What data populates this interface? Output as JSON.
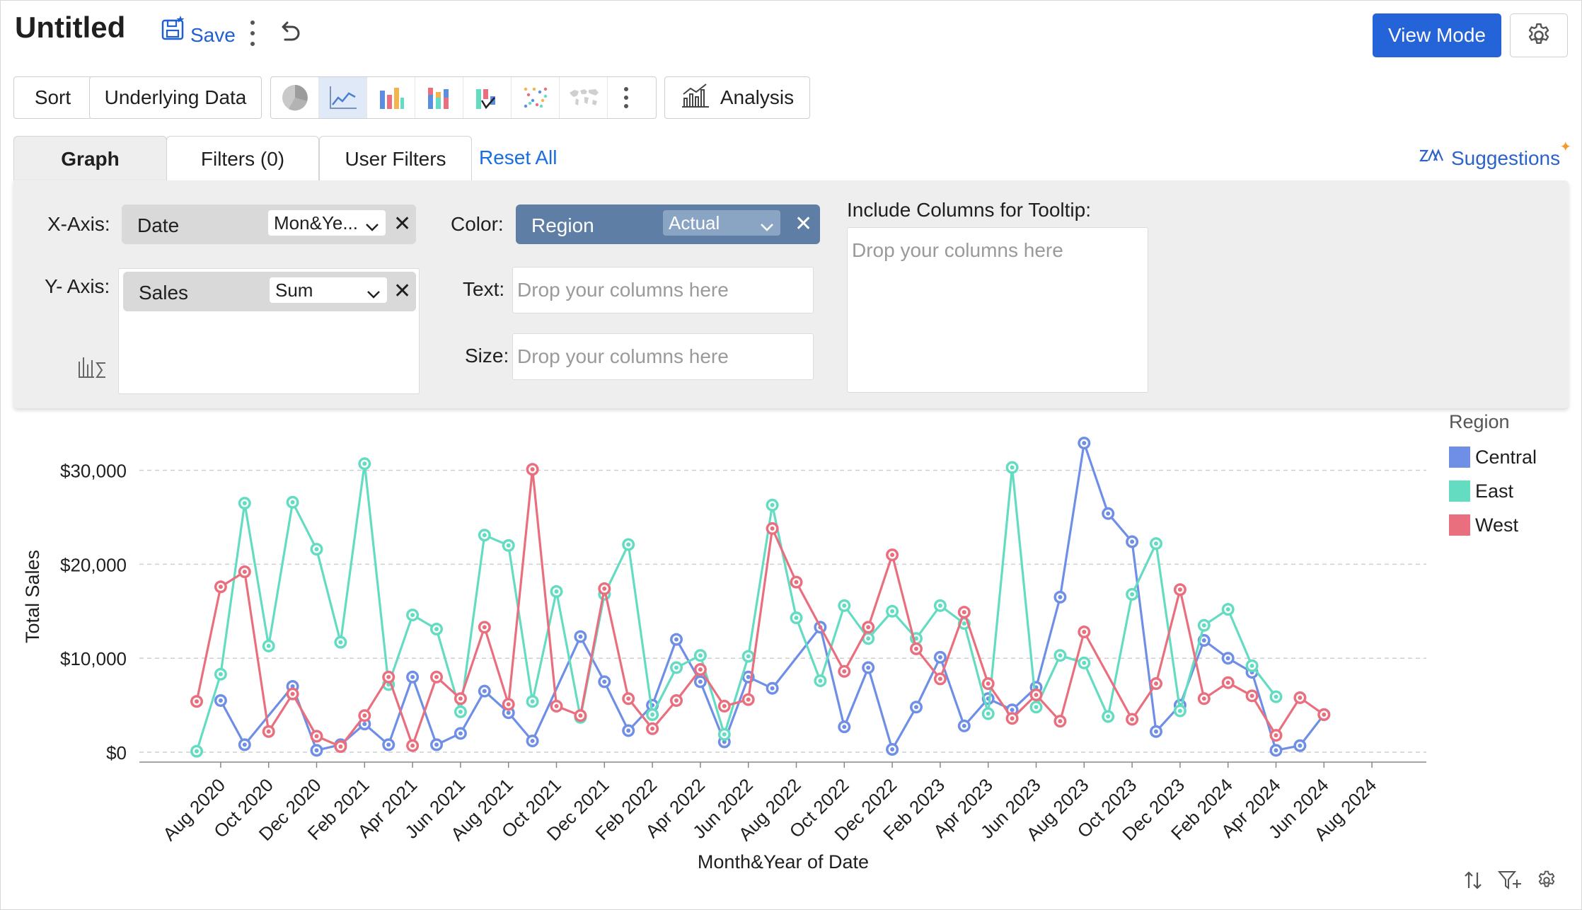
{
  "header": {
    "title": "Untitled",
    "save_label": "Save",
    "view_mode_label": "View Mode"
  },
  "toolbar": {
    "sort_label": "Sort",
    "underlying_data_label": "Underlying Data",
    "chart_types": [
      "pie-chart-icon",
      "line-chart-icon",
      "bar-chart-icon",
      "stacked-bar-chart-icon",
      "waterfall-chart-icon",
      "scatter-chart-icon",
      "map-chart-icon"
    ],
    "active_chart_type": "line-chart-icon",
    "analysis_label": "Analysis"
  },
  "tabs": {
    "graph": "Graph",
    "filters": "Filters  (0)",
    "user_filters": "User Filters",
    "reset_all": "Reset All",
    "suggestions": "Suggestions"
  },
  "config": {
    "x_axis_label": "X-Axis:",
    "x_axis_field": "Date",
    "x_axis_agg": "Mon&Ye...",
    "y_axis_label": "Y- Axis:",
    "y_axis_field": "Sales",
    "y_axis_agg": "Sum",
    "color_label": "Color:",
    "color_field": "Region",
    "color_agg": "Actual",
    "text_label": "Text:",
    "size_label": "Size:",
    "tooltip_label": "Include Columns for Tooltip:",
    "drop_placeholder": "Drop your columns here"
  },
  "colors": {
    "primary": "#2563d9",
    "link": "#1a6fe0",
    "central": "#6f8ee6",
    "east": "#63dcc2",
    "west": "#ea6f7e"
  },
  "chart_data": {
    "type": "line",
    "title": "",
    "xlabel": "Month&Year of Date",
    "ylabel": "Total Sales",
    "ylim": [
      0,
      32000
    ],
    "yticks": [
      "$0",
      "$10,000",
      "$20,000",
      "$30,000"
    ],
    "legend_title": "Region",
    "legend_position": "right",
    "grid": "horizontal dashed",
    "x": [
      "Jul 2020",
      "Aug 2020",
      "Sep 2020",
      "Oct 2020",
      "Nov 2020",
      "Dec 2020",
      "Jan 2021",
      "Feb 2021",
      "Mar 2021",
      "Apr 2021",
      "May 2021",
      "Jun 2021",
      "Jul 2021",
      "Aug 2021",
      "Sep 2021",
      "Oct 2021",
      "Nov 2021",
      "Dec 2021",
      "Jan 2022",
      "Feb 2022",
      "Mar 2022",
      "Apr 2022",
      "May 2022",
      "Jun 2022",
      "Jul 2022",
      "Aug 2022",
      "Sep 2022",
      "Oct 2022",
      "Nov 2022",
      "Dec 2022",
      "Jan 2023",
      "Feb 2023",
      "Mar 2023",
      "Apr 2023",
      "May 2023",
      "Jun 2023",
      "Jul 2023",
      "Aug 2023",
      "Sep 2023",
      "Oct 2023",
      "Nov 2023",
      "Dec 2023",
      "Jan 2024",
      "Feb 2024",
      "Mar 2024",
      "Apr 2024",
      "May 2024",
      "Jun 2024",
      "Jul 2024",
      "Aug 2024",
      "Sep 2024"
    ],
    "tick_labels": [
      "Aug 2020",
      "Oct 2020",
      "Dec 2020",
      "Feb 2021",
      "Apr 2021",
      "Jun 2021",
      "Aug 2021",
      "Oct 2021",
      "Dec 2021",
      "Feb 2022",
      "Apr 2022",
      "Jun 2022",
      "Aug 2022",
      "Oct 2022",
      "Dec 2022",
      "Feb 2023",
      "Apr 2023",
      "Jun 2023",
      "Aug 2023",
      "Oct 2023",
      "Dec 2023",
      "Feb 2024",
      "Apr 2024",
      "Jun 2024",
      "Aug 2024"
    ],
    "series": [
      {
        "name": "Central",
        "points": [
          [
            "Aug 2020",
            5500
          ],
          [
            "Sep 2020",
            800
          ],
          [
            "Nov 2020",
            7000
          ],
          [
            "Dec 2020",
            200
          ],
          [
            "Jan 2021",
            800
          ],
          [
            "Feb 2021",
            3000
          ],
          [
            "Mar 2021",
            800
          ],
          [
            "Apr 2021",
            8000
          ],
          [
            "May 2021",
            800
          ],
          [
            "Jun 2021",
            2000
          ],
          [
            "Jul 2021",
            6500
          ],
          [
            "Aug 2021",
            4200
          ],
          [
            "Sep 2021",
            1200
          ],
          [
            "Nov 2021",
            12300
          ],
          [
            "Dec 2021",
            7500
          ],
          [
            "Jan 2022",
            2300
          ],
          [
            "Feb 2022",
            5000
          ],
          [
            "Mar 2022",
            12000
          ],
          [
            "Apr 2022",
            7500
          ],
          [
            "May 2022",
            1100
          ],
          [
            "Jun 2022",
            8000
          ],
          [
            "Jul 2022",
            6800
          ],
          [
            "Sep 2022",
            13300
          ],
          [
            "Oct 2022",
            2700
          ],
          [
            "Nov 2022",
            9000
          ],
          [
            "Dec 2022",
            300
          ],
          [
            "Jan 2023",
            4800
          ],
          [
            "Feb 2023",
            10100
          ],
          [
            "Mar 2023",
            2800
          ],
          [
            "Apr 2023",
            5700
          ],
          [
            "May 2023",
            4500
          ],
          [
            "Jun 2023",
            6900
          ],
          [
            "Jul 2023",
            16500
          ],
          [
            "Aug 2023",
            32900
          ],
          [
            "Sep 2023",
            25400
          ],
          [
            "Oct 2023",
            22400
          ],
          [
            "Nov 2023",
            2200
          ],
          [
            "Dec 2023",
            5000
          ],
          [
            "Jan 2024",
            11900
          ],
          [
            "Feb 2024",
            10000
          ],
          [
            "Mar 2024",
            8500
          ],
          [
            "Apr 2024",
            200
          ],
          [
            "May 2024",
            700
          ],
          [
            "Jun 2024",
            4000
          ]
        ]
      },
      {
        "name": "East",
        "points": [
          [
            "Jul 2020",
            100
          ],
          [
            "Aug 2020",
            8300
          ],
          [
            "Sep 2020",
            26500
          ],
          [
            "Oct 2020",
            11300
          ],
          [
            "Nov 2020",
            26600
          ],
          [
            "Dec 2020",
            21600
          ],
          [
            "Jan 2021",
            11700
          ],
          [
            "Feb 2021",
            30700
          ],
          [
            "Mar 2021",
            7200
          ],
          [
            "Apr 2021",
            14600
          ],
          [
            "May 2021",
            13100
          ],
          [
            "Jun 2021",
            4300
          ],
          [
            "Jul 2021",
            23100
          ],
          [
            "Aug 2021",
            22000
          ],
          [
            "Sep 2021",
            5400
          ],
          [
            "Oct 2021",
            17100
          ],
          [
            "Nov 2021",
            3700
          ],
          [
            "Dec 2021",
            16800
          ],
          [
            "Jan 2022",
            22100
          ],
          [
            "Feb 2022",
            4000
          ],
          [
            "Mar 2022",
            9000
          ],
          [
            "Apr 2022",
            10300
          ],
          [
            "May 2022",
            1900
          ],
          [
            "Jun 2022",
            10200
          ],
          [
            "Jul 2022",
            26300
          ],
          [
            "Aug 2022",
            14300
          ],
          [
            "Sep 2022",
            7600
          ],
          [
            "Oct 2022",
            15600
          ],
          [
            "Nov 2022",
            12100
          ],
          [
            "Dec 2022",
            15000
          ],
          [
            "Jan 2023",
            12100
          ],
          [
            "Feb 2023",
            15600
          ],
          [
            "Mar 2023",
            13700
          ],
          [
            "Apr 2023",
            4100
          ],
          [
            "May 2023",
            30300
          ],
          [
            "Jun 2023",
            4800
          ],
          [
            "Jul 2023",
            10300
          ],
          [
            "Aug 2023",
            9500
          ],
          [
            "Sep 2023",
            3800
          ],
          [
            "Oct 2023",
            16800
          ],
          [
            "Nov 2023",
            22200
          ],
          [
            "Dec 2023",
            4400
          ],
          [
            "Jan 2024",
            13500
          ],
          [
            "Feb 2024",
            15200
          ],
          [
            "Mar 2024",
            9200
          ],
          [
            "Apr 2024",
            5900
          ]
        ]
      },
      {
        "name": "West",
        "points": [
          [
            "Jul 2020",
            5400
          ],
          [
            "Aug 2020",
            17600
          ],
          [
            "Sep 2020",
            19200
          ],
          [
            "Oct 2020",
            2200
          ],
          [
            "Nov 2020",
            6200
          ],
          [
            "Dec 2020",
            1700
          ],
          [
            "Jan 2021",
            600
          ],
          [
            "Feb 2021",
            3900
          ],
          [
            "Mar 2021",
            8000
          ],
          [
            "Apr 2021",
            700
          ],
          [
            "May 2021",
            8000
          ],
          [
            "Jun 2021",
            5700
          ],
          [
            "Jul 2021",
            13300
          ],
          [
            "Aug 2021",
            5100
          ],
          [
            "Sep 2021",
            30100
          ],
          [
            "Oct 2021",
            4900
          ],
          [
            "Nov 2021",
            3900
          ],
          [
            "Dec 2021",
            17400
          ],
          [
            "Jan 2022",
            5700
          ],
          [
            "Feb 2022",
            2500
          ],
          [
            "Mar 2022",
            5500
          ],
          [
            "Apr 2022",
            8800
          ],
          [
            "May 2022",
            4900
          ],
          [
            "Jun 2022",
            5600
          ],
          [
            "Jul 2022",
            23800
          ],
          [
            "Aug 2022",
            18100
          ],
          [
            "Oct 2022",
            8600
          ],
          [
            "Nov 2022",
            13300
          ],
          [
            "Dec 2022",
            21000
          ],
          [
            "Jan 2023",
            11000
          ],
          [
            "Feb 2023",
            7800
          ],
          [
            "Mar 2023",
            14900
          ],
          [
            "Apr 2023",
            7300
          ],
          [
            "May 2023",
            3600
          ],
          [
            "Jun 2023",
            6100
          ],
          [
            "Jul 2023",
            3300
          ],
          [
            "Aug 2023",
            12800
          ],
          [
            "Oct 2023",
            3500
          ],
          [
            "Nov 2023",
            7300
          ],
          [
            "Dec 2023",
            17300
          ],
          [
            "Jan 2024",
            5700
          ],
          [
            "Feb 2024",
            7400
          ],
          [
            "Mar 2024",
            6000
          ],
          [
            "Apr 2024",
            1800
          ],
          [
            "May 2024",
            5800
          ],
          [
            "Jun 2024",
            4000
          ]
        ]
      }
    ]
  }
}
